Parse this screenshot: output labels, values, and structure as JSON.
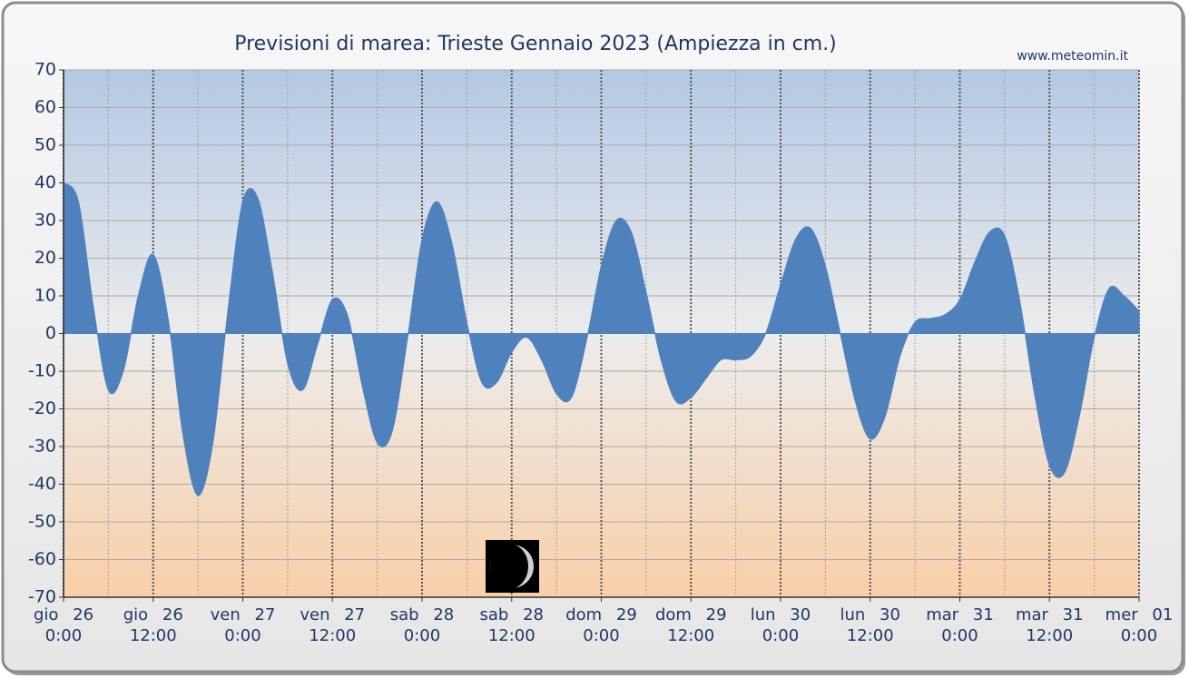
{
  "chart_data": {
    "type": "area",
    "title": "Previsioni di marea: Trieste Gennaio 2023 (Ampiezza in cm.)",
    "source": "www.meteomin.it",
    "x": [
      0,
      2,
      4,
      6,
      8,
      10,
      12,
      14,
      16,
      18,
      20,
      22,
      24,
      26,
      28,
      30,
      32,
      34,
      36,
      38,
      40,
      42,
      44,
      46,
      48,
      50,
      52,
      54,
      56,
      58,
      60,
      62,
      64,
      66,
      68,
      70,
      72,
      74,
      76,
      78,
      80,
      82,
      84,
      86,
      88,
      90,
      92,
      94,
      96,
      98,
      100,
      102,
      104,
      106,
      108,
      110,
      112,
      114,
      116,
      118,
      120,
      122,
      124,
      126,
      128,
      130,
      132,
      134,
      136,
      138,
      140,
      142,
      144
    ],
    "values": [
      40,
      35,
      7,
      -15,
      -10,
      10,
      21,
      4,
      -27,
      -43,
      -29,
      6,
      35,
      36,
      16,
      -8,
      -15,
      -3,
      9,
      5,
      -14,
      -29,
      -26,
      -2,
      25,
      35,
      24,
      3,
      -13,
      -13,
      -5,
      -1,
      -7,
      -16,
      -17,
      -2,
      18,
      30,
      27,
      11,
      -7,
      -18,
      -17,
      -12,
      -7,
      -7,
      -6,
      0,
      13,
      25,
      28,
      18,
      0,
      -18,
      -28,
      -22,
      -6,
      3,
      4,
      5,
      9,
      19,
      27,
      26,
      9,
      -16,
      -35,
      -37,
      -22,
      -1,
      12,
      10,
      6
    ],
    "color": "#4f81bd",
    "xlim": [
      0,
      144
    ],
    "xticks": [
      {
        "value": 0,
        "label": [
          "gio 26",
          "0:00"
        ]
      },
      {
        "value": 12,
        "label": [
          "gio 26",
          "12:00"
        ]
      },
      {
        "value": 24,
        "label": [
          "ven 27",
          "0:00"
        ]
      },
      {
        "value": 36,
        "label": [
          "ven 27",
          "12:00"
        ]
      },
      {
        "value": 48,
        "label": [
          "sab 28",
          "0:00"
        ]
      },
      {
        "value": 60,
        "label": [
          "sab 28",
          "12:00"
        ]
      },
      {
        "value": 72,
        "label": [
          "dom 29",
          "0:00"
        ]
      },
      {
        "value": 84,
        "label": [
          "dom 29",
          "12:00"
        ]
      },
      {
        "value": 96,
        "label": [
          "lun 30",
          "0:00"
        ]
      },
      {
        "value": 108,
        "label": [
          "lun 30",
          "12:00"
        ]
      },
      {
        "value": 120,
        "label": [
          "mar 31",
          "0:00"
        ]
      },
      {
        "value": 132,
        "label": [
          "mar 31",
          "12:00"
        ]
      },
      {
        "value": 144,
        "label": [
          "mer 01",
          "0:00"
        ]
      }
    ],
    "xminorticks": [
      6,
      18,
      30,
      42,
      54,
      66,
      78,
      90,
      102,
      114,
      126,
      138
    ],
    "ylim": [
      -70,
      70
    ],
    "yticks": [
      -70,
      -60,
      -50,
      -40,
      -30,
      -20,
      -10,
      0,
      10,
      20,
      30,
      40,
      50,
      60,
      70
    ],
    "grid": true
  }
}
